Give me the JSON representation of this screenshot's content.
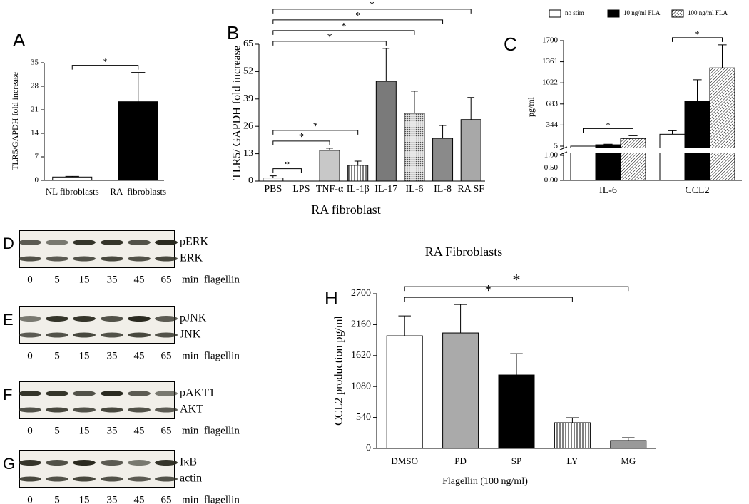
{
  "chart_data": [
    {
      "type": "bar",
      "panel": "A",
      "ylabel": "TLR5/GAPDH fold increase",
      "categories": [
        "NL fibroblasts",
        "RA  fibroblasts"
      ],
      "values": [
        1,
        23.4
      ],
      "errors": [
        0.2,
        8.7
      ],
      "fills": [
        "#ffffff",
        "#000000"
      ],
      "ylim": [
        0,
        35
      ],
      "yticks": [
        0,
        7,
        14,
        21,
        28,
        35
      ],
      "significance": [
        {
          "between": [
            "NL fibroblasts",
            "RA  fibroblasts"
          ],
          "label": "*"
        }
      ]
    },
    {
      "type": "bar",
      "panel": "B",
      "ylabel": "TLR5/ GAPDH fold increase",
      "xlabel": "RA fibroblast",
      "categories": [
        "PBS",
        "LPS",
        "TNF-α",
        "IL-1β",
        "IL-17",
        "IL-6",
        "IL-8",
        "RA SF"
      ],
      "values": [
        1.5,
        0,
        14.6,
        7.5,
        47.4,
        32.2,
        20.3,
        29.2
      ],
      "errors": [
        1,
        0,
        1,
        2,
        15.6,
        10.5,
        6.1,
        10.5
      ],
      "fills": [
        "#ffffff",
        "#ffffff",
        "#c8c8c8",
        "vstripe",
        "#7a7a7a",
        "dots",
        "#8a8a8a",
        "#a8a8a8"
      ],
      "ylim": [
        0,
        65
      ],
      "yticks": [
        0,
        13,
        26,
        39,
        52,
        65
      ],
      "significance": [
        {
          "between": [
            "PBS",
            "LPS"
          ],
          "label": "*"
        },
        {
          "between": [
            "PBS",
            "TNF-α"
          ],
          "label": "*"
        },
        {
          "between": [
            "PBS",
            "IL-1β"
          ],
          "label": "*"
        },
        {
          "between": [
            "PBS",
            "IL-17"
          ],
          "label": "*"
        },
        {
          "between": [
            "PBS",
            "IL-6"
          ],
          "label": "*"
        },
        {
          "between": [
            "PBS",
            "IL-8"
          ],
          "label": "*"
        },
        {
          "between": [
            "PBS",
            "RA SF"
          ],
          "label": "*"
        }
      ]
    },
    {
      "type": "grouped_bar",
      "panel": "C",
      "ylabel": "pg/ml",
      "categories": [
        "IL-6",
        "CCL2"
      ],
      "series": [
        {
          "name": "no stim",
          "fill": "#ffffff",
          "values": [
            5,
            196
          ],
          "errors": [
            0,
            56
          ]
        },
        {
          "name": "10 ng/ml FLA",
          "fill": "#000000",
          "values": [
            27,
            723
          ],
          "errors": [
            10,
            348
          ]
        },
        {
          "name": "100 ng/ml FLA",
          "fill": "diag",
          "values": [
            128,
            1262
          ],
          "errors": [
            45,
            371
          ]
        }
      ],
      "ylim": [
        5,
        1700
      ],
      "yticks": [
        5,
        344,
        683,
        1022,
        1361,
        1700
      ],
      "y_lower_lim": [
        0,
        1
      ],
      "y_lower_ticks": [
        {
          "value": 0,
          "label": "0.00"
        },
        {
          "value": 0.5,
          "label": "0.50"
        },
        {
          "value": 1,
          "label": "1.00"
        }
      ],
      "significance": [
        {
          "category": "IL-6",
          "between": [
            "no stim",
            "100 ng/ml FLA"
          ],
          "label": "*"
        },
        {
          "category": "CCL2",
          "between": [
            "no stim",
            "100 ng/ml FLA"
          ],
          "label": "*"
        }
      ]
    },
    {
      "type": "bar",
      "panel": "H",
      "title": "RA Fibroblasts",
      "ylabel": "CCL2 production pg/ml",
      "xlabel": "Flagellin (100 ng/ml)",
      "categories": [
        "DMSO",
        "PD",
        "SP",
        "LY",
        "MG"
      ],
      "values": [
        1965,
        2015,
        1281,
        448,
        137
      ],
      "errors": [
        348,
        497,
        373,
        87,
        50
      ],
      "fills": [
        "#ffffff",
        "#aaaaaa",
        "#000000",
        "vstripe",
        "#999999"
      ],
      "ylim": [
        0,
        2700
      ],
      "yticks": [
        0,
        540,
        1080,
        1620,
        2160,
        2700
      ],
      "significance": [
        {
          "between": [
            "DMSO",
            "LY"
          ],
          "label": "*"
        },
        {
          "between": [
            "DMSO",
            "MG"
          ],
          "label": "*"
        }
      ]
    }
  ],
  "blots": [
    {
      "panel": "D",
      "bands": [
        "pERK",
        "ERK"
      ],
      "lanes": [
        0,
        5,
        15,
        35,
        45,
        65
      ],
      "unit": "min  flagellin"
    },
    {
      "panel": "E",
      "bands": [
        "pJNK",
        "JNK"
      ],
      "lanes": [
        0,
        5,
        15,
        35,
        45,
        65
      ],
      "unit": "min  flagellin"
    },
    {
      "panel": "F",
      "bands": [
        "pAKT1",
        "AKT"
      ],
      "lanes": [
        0,
        5,
        15,
        35,
        45,
        65
      ],
      "unit": "min  flagellin"
    },
    {
      "panel": "G",
      "bands": [
        "IκB",
        "actin"
      ],
      "lanes": [
        0,
        5,
        15,
        35,
        45,
        65
      ],
      "unit": "min  flagellin"
    }
  ]
}
